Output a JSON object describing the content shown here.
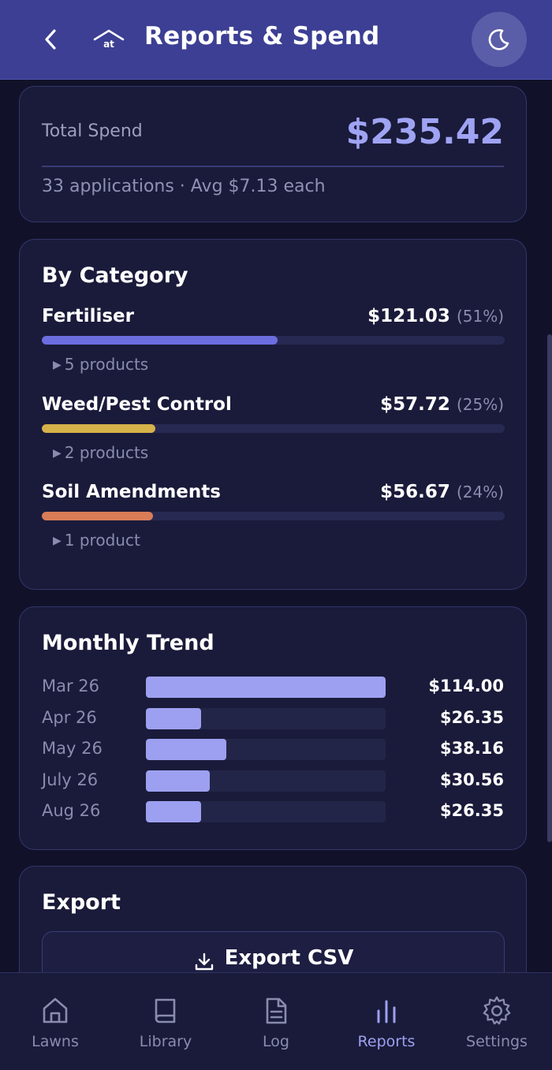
{
  "header": {
    "title": "Reports & Spend",
    "logo_text": "at",
    "back_icon": "chevron-left-icon",
    "theme_icon": "moon-icon"
  },
  "total": {
    "label": "Total Spend",
    "value": "$235.42",
    "summary": "33 applications · Avg $7.13 each"
  },
  "by_category": {
    "title": "By Category",
    "items": [
      {
        "name": "Fertiliser",
        "amount": "$121.03",
        "percent_label": "(51%)",
        "share": 0.51,
        "color": "#6c6ee0",
        "products": "5 products"
      },
      {
        "name": "Weed/Pest Control",
        "amount": "$57.72",
        "percent_label": "(25%)",
        "share": 0.245,
        "color": "#d6b24a",
        "products": "2 products"
      },
      {
        "name": "Soil Amendments",
        "amount": "$56.67",
        "percent_label": "(24%)",
        "share": 0.24,
        "color": "#d97c58",
        "products": "1 product"
      }
    ]
  },
  "monthly_trend": {
    "title": "Monthly Trend",
    "max": 114.0,
    "items": [
      {
        "month": "Mar 26",
        "amount": 114.0,
        "label": "$114.00"
      },
      {
        "month": "Apr 26",
        "amount": 26.35,
        "label": "$26.35"
      },
      {
        "month": "May 26",
        "amount": 38.16,
        "label": "$38.16"
      },
      {
        "month": "July 26",
        "amount": 30.56,
        "label": "$30.56"
      },
      {
        "month": "Aug 26",
        "amount": 26.35,
        "label": "$26.35"
      }
    ]
  },
  "export": {
    "title": "Export",
    "button_label": "Export CSV",
    "button_icon": "download-icon"
  },
  "nav": {
    "items": [
      {
        "label": "Lawns",
        "icon": "home-icon",
        "active": false
      },
      {
        "label": "Library",
        "icon": "book-icon",
        "active": false
      },
      {
        "label": "Log",
        "icon": "document-icon",
        "active": false
      },
      {
        "label": "Reports",
        "icon": "bar-chart-icon",
        "active": true
      },
      {
        "label": "Settings",
        "icon": "gear-icon",
        "active": false
      }
    ]
  }
}
